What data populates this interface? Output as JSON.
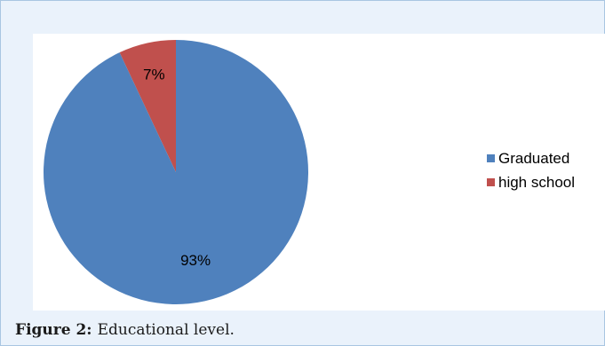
{
  "chart_data": {
    "type": "pie",
    "slices": [
      {
        "label": "Graduated",
        "value": 93,
        "display": "93%",
        "color": "#4f81bd"
      },
      {
        "label": "high school",
        "value": 7,
        "display": "7%",
        "color": "#c0504d"
      }
    ],
    "legend_position": "right"
  },
  "caption": {
    "figure_label": "Figure 2:",
    "text": "Educational level."
  }
}
